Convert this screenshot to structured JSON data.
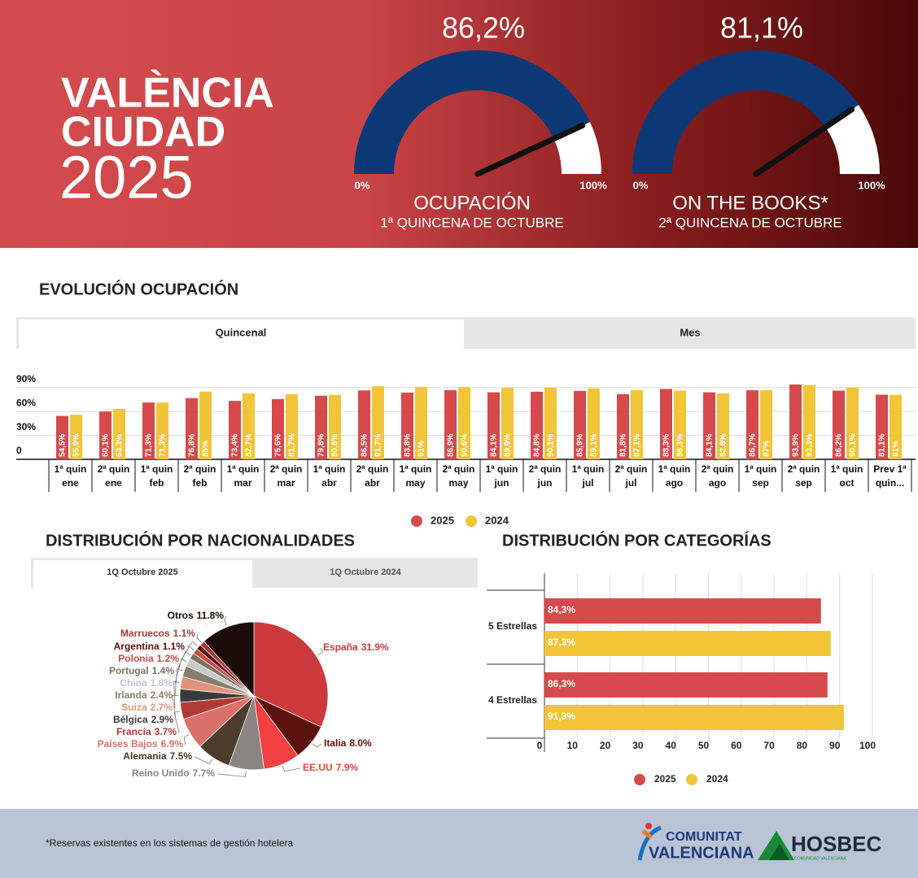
{
  "header": {
    "title_lines": [
      "VALÈNCIA",
      "CIUDAD",
      "2025"
    ]
  },
  "chart_data": [
    {
      "type": "gauge",
      "value": 86.2,
      "value_label": "86,2%",
      "title": "OCUPACIÓN",
      "subtitle": "1ª QUINCENA DE OCTUBRE",
      "color": "#0d3876",
      "xlim": [
        0,
        100
      ],
      "xticks": [
        {
          "value": 0,
          "label": "0%"
        },
        {
          "value": 100,
          "label": "100%"
        }
      ]
    },
    {
      "type": "gauge",
      "value": 81.1,
      "value_label": "81,1%",
      "title": "ON THE BOOKS*",
      "subtitle": "2ª QUINCENA DE OCTUBRE",
      "color": "#0d3876",
      "xlim": [
        0,
        100
      ],
      "xticks": [
        {
          "value": 0,
          "label": "0%"
        },
        {
          "value": 100,
          "label": "100%"
        }
      ]
    },
    {
      "type": "bar",
      "title": "EVOLUCIÓN OCUPACIÓN",
      "tabs": [
        "Quincenal",
        "Mes"
      ],
      "categories": [
        "1ª quin ene",
        "2ª quin ene",
        "1ª quin feb",
        "2ª quin feb",
        "1ª quin mar",
        "2ª quin mar",
        "1ª quin abr",
        "2ª quin abr",
        "1ª quin may",
        "2ª quin may",
        "1ª quin jun",
        "2ª quin jun",
        "1ª quin jul",
        "2ª quin jul",
        "1ª quin ago",
        "2ª quin ago",
        "1ª quin sep",
        "2ª quin sep",
        "1ª quin oct",
        "Prev 1ª quin..."
      ],
      "series": [
        {
          "name": "2025",
          "color": "#d64a4b",
          "values": [
            54.5,
            60.1,
            71.3,
            76.8,
            73.4,
            75.6,
            79.8,
            86.5,
            83.8,
            86.9,
            84.1,
            84.8,
            85.9,
            81.8,
            88.3,
            84.1,
            86.7,
            93.9,
            86.2,
            81.1
          ],
          "value_labels": [
            "54,5%",
            "60,1%",
            "71,3%",
            "76,8%",
            "73,4%",
            "75,6%",
            "79,8%",
            "86,5%",
            "83,8%",
            "86,9%",
            "84,1%",
            "84,8%",
            "85,9%",
            "81,8%",
            "88,3%",
            "84,1%",
            "86,7%",
            "93,9%",
            "86,2%",
            "81,1%"
          ]
        },
        {
          "name": "2024",
          "color": "#f2c437",
          "values": [
            55.9,
            63.3,
            71.3,
            85,
            82.7,
            81.7,
            80.8,
            91.7,
            91,
            90.6,
            89.9,
            90.1,
            89.1,
            87.1,
            86.3,
            82.8,
            87,
            93.3,
            90.1,
            81
          ],
          "value_labels": [
            "55,9%",
            "63,3%",
            "71,3%",
            "85%",
            "82,7%",
            "81,7%",
            "80,8%",
            "91,7%",
            "91%",
            "90,6%",
            "89,9%",
            "90,1%",
            "89,1%",
            "87,1%",
            "86,3%",
            "82,8%",
            "87%",
            "93,3%",
            "90,1%",
            "81%"
          ]
        }
      ],
      "ylim": [
        0,
        100
      ],
      "yticks": [
        0,
        {
          "value": 30,
          "label": "30%"
        },
        {
          "value": 60,
          "label": "60%"
        },
        {
          "value": 90,
          "label": "90%"
        }
      ],
      "grid": true
    },
    {
      "type": "pie",
      "title": "DISTRIBUCIÓN POR NACIONALIDADES",
      "tabs": [
        "1Q Octubre 2025",
        "1Q Octubre 2024"
      ],
      "categories": [
        "España",
        "Italia",
        "EE.UU",
        "Reino Unido",
        "Alemania",
        "Países Bajos",
        "Francia",
        "Bélgica",
        "Suiza",
        "Irlanda",
        "China",
        "Portugal",
        "Polonia",
        "Argentina",
        "Marruecos",
        "Otros"
      ],
      "values": [
        31.9,
        8.0,
        7.9,
        7.7,
        7.5,
        6.9,
        3.7,
        2.9,
        2.7,
        2.4,
        1.8,
        1.4,
        1.2,
        1.1,
        1.1,
        11.8
      ],
      "value_labels": [
        "31.9%",
        "8.0%",
        "7.9%",
        "7.7%",
        "7.5%",
        "6.9%",
        "3.7%",
        "2.9%",
        "2.7%",
        "2.4%",
        "1.8%",
        "1.4%",
        "1.2%",
        "1.1%",
        "1.1%",
        "11.8%"
      ],
      "colors": [
        "#cc3a3c",
        "#5c120c",
        "#f0403f",
        "#8a8580",
        "#4d3c2b",
        "#d9716a",
        "#b23a35",
        "#3a3a3a",
        "#e0937a",
        "#8a7c6a",
        "#c8c8c8",
        "#7a7260",
        "#c94848",
        "#5a1010",
        "#a83838",
        "#1c0c0a"
      ]
    },
    {
      "type": "hbar",
      "title": "DISTRIBUCIÓN POR CATEGORÍAS",
      "categories": [
        "5 Estrellas",
        "4 Estrellas"
      ],
      "series": [
        {
          "name": "2025",
          "color": "#d64a4b",
          "values": [
            84.3,
            86.3
          ],
          "value_labels": [
            "84,3%",
            "86,3%"
          ]
        },
        {
          "name": "2024",
          "color": "#f2c437",
          "values": [
            87.3,
            91.3
          ],
          "value_labels": [
            "87,3%",
            "91,3%"
          ]
        }
      ],
      "xlim": [
        0,
        100
      ],
      "xticks": [
        0,
        10,
        20,
        30,
        40,
        50,
        60,
        70,
        80,
        90,
        100
      ],
      "grid": true
    }
  ],
  "footer": {
    "note": "*Reservas existentes en los sistemas de gestión hotelera",
    "logo_1": [
      "COMUNITAT",
      "VALENCIANA"
    ],
    "logo_2": "HOSBEC",
    "logo_2_sub": "COMUNIDAD VALENCIANA"
  }
}
